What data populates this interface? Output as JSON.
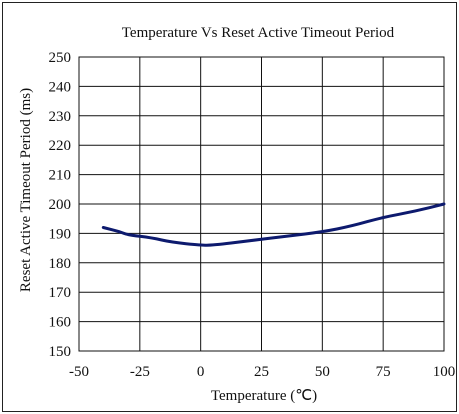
{
  "chart_data": {
    "type": "line",
    "title": "Temperature Vs Reset Active Timeout Period",
    "xlabel": "Temperature (℃)",
    "ylabel": "Reset Active Timeout Period (ms)",
    "xlim": [
      -50,
      100
    ],
    "ylim": [
      150,
      250
    ],
    "xticks": [
      "-50",
      "-25",
      "0",
      "25",
      "50",
      "75",
      "100"
    ],
    "yticks": [
      "150",
      "160",
      "170",
      "180",
      "190",
      "200",
      "210",
      "220",
      "230",
      "240",
      "250"
    ],
    "grid": true,
    "series": [
      {
        "color": "#0d1a6e",
        "x": [
          -40,
          -33,
          -30,
          -20,
          -12,
          0,
          5,
          20,
          35,
          50,
          62,
          75,
          88,
          100
        ],
        "y": [
          192,
          190.5,
          189.5,
          188.5,
          187,
          186,
          186,
          187.5,
          189,
          190.5,
          192.5,
          195.5,
          197.5,
          200
        ]
      }
    ]
  }
}
